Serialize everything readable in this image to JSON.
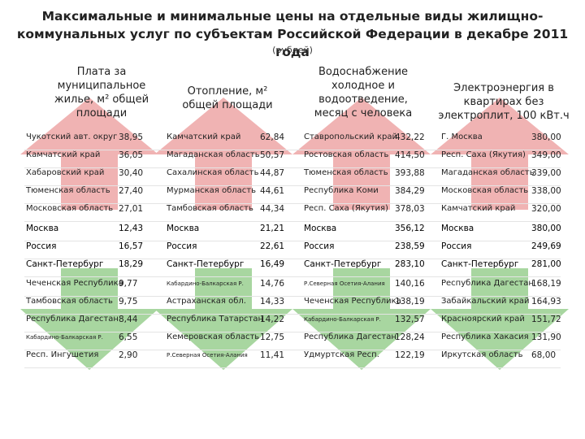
{
  "title_line1": "Максимальные и минимальные цены на отдельные виды жилищно-",
  "title_line2": "коммунальных услуг по субъектам Российской Федерации в декабре 2011 года",
  "subtitle": "(рублей)",
  "columns": [
    {
      "header_lines": [
        "Плата за",
        "муниципальное",
        "жилье, м² общей",
        "площади"
      ]
    },
    {
      "header_lines": [
        "Отопление, м²",
        "общей площади"
      ]
    },
    {
      "header_lines": [
        "Водоснабжение",
        "холодное и",
        "водоотведение,",
        "месяц с человека"
      ]
    },
    {
      "header_lines": [
        "Электроэнергия в",
        "квартирах без",
        "электроплит, 100 кВт.ч"
      ]
    }
  ],
  "colors": {
    "arrow_red": "#f0b3b3",
    "arrow_green": "#a8d6a0"
  },
  "rows": [
    {
      "cells": [
        [
          "Чукотский авт. округ",
          "38,95"
        ],
        [
          "Камчатский край",
          "62,84"
        ],
        [
          "Ставропольский край",
          "432,22"
        ],
        [
          "Г. Москва",
          "380,00"
        ]
      ]
    },
    {
      "cells": [
        [
          "Камчатский край",
          "36,05"
        ],
        [
          "Магаданская область",
          "50,57"
        ],
        [
          "Ростовская область",
          "414,50"
        ],
        [
          "Респ. Саха (Якутия)",
          "349,00"
        ]
      ]
    },
    {
      "cells": [
        [
          "Хабаровский край",
          "30,40"
        ],
        [
          "Сахалинская область",
          "44,87"
        ],
        [
          "Тюменская область",
          "393,88"
        ],
        [
          "Магаданская область",
          "339,00"
        ]
      ]
    },
    {
      "cells": [
        [
          "Тюменская область",
          "27,40"
        ],
        [
          "Мурманская область",
          "44,61"
        ],
        [
          "Республика Коми",
          "384,29"
        ],
        [
          "Московская область",
          "338,00"
        ]
      ]
    },
    {
      "cells": [
        [
          "Московская область",
          "27,01"
        ],
        [
          "Тамбовская область",
          "44,34"
        ],
        [
          "Респ. Саха (Якутия)",
          "378,03"
        ],
        [
          "Камчатский край",
          "320,00"
        ]
      ]
    },
    {
      "cells": [
        [
          "Москва",
          "12,43"
        ],
        [
          "Москва",
          "21,21"
        ],
        [
          "Москва",
          "356,12"
        ],
        [
          "Москва",
          "380,00"
        ]
      ]
    },
    {
      "cells": [
        [
          "Россия",
          "16,57"
        ],
        [
          "Россия",
          "22,61"
        ],
        [
          "Россия",
          "238,59"
        ],
        [
          "Россия",
          "249,69"
        ]
      ]
    },
    {
      "cells": [
        [
          "Санкт-Петербург",
          "18,29"
        ],
        [
          "Санкт-Петербург",
          "16,49"
        ],
        [
          "Санкт-Петербург",
          "283,10"
        ],
        [
          "Санкт-Петербург",
          "281,00"
        ]
      ]
    },
    {
      "cells": [
        [
          "Чеченская Республика",
          "9,77"
        ],
        [
          "Кабардино-Балкарская Р.",
          "14,76"
        ],
        [
          "Р.Северная Осетия-Алания",
          "140,16"
        ],
        [
          "Республика Дагестан",
          "168,19"
        ]
      ]
    },
    {
      "cells": [
        [
          "Тамбовская область",
          "9,75"
        ],
        [
          "Астраханская обл.",
          "14,33"
        ],
        [
          "Чеченская Республика",
          "138,19"
        ],
        [
          "Забайкальский край",
          "164,93"
        ]
      ]
    },
    {
      "cells": [
        [
          "Республика Дагестан",
          "8,44"
        ],
        [
          "Республика Татарстан",
          "14,22"
        ],
        [
          "Кабардино-Балкарская Р.",
          "132,57"
        ],
        [
          "Красноярский край",
          "151,72"
        ]
      ]
    },
    {
      "cells": [
        [
          "Кабардино-Балкарская Р.",
          "6,55"
        ],
        [
          "Кемеровская область",
          "12,75"
        ],
        [
          "Республика Дагестан",
          "128,24"
        ],
        [
          "Республика Хакасия",
          "131,90"
        ]
      ]
    },
    {
      "cells": [
        [
          "Респ. Ингушетия",
          "2,90"
        ],
        [
          "Р.Северная Осетия-Алания",
          "11,41"
        ],
        [
          "Удмуртская Респ.",
          "122,19"
        ],
        [
          "Иркутская область",
          "68,00"
        ]
      ]
    }
  ]
}
